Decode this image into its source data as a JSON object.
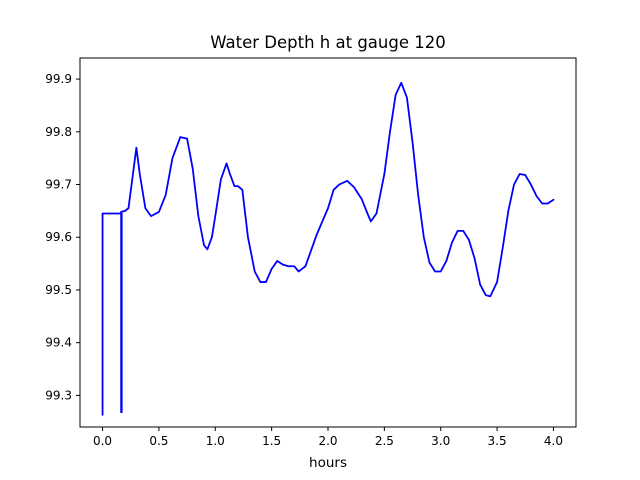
{
  "chart_data": {
    "type": "line",
    "title": "Water Depth h at gauge 120",
    "xlabel": "hours",
    "ylabel": "",
    "xlim": [
      -0.2,
      4.2
    ],
    "ylim": [
      99.24,
      99.94
    ],
    "xticks": [
      0.0,
      0.5,
      1.0,
      1.5,
      2.0,
      2.5,
      3.0,
      3.5,
      4.0
    ],
    "xtick_labels": [
      "0.0",
      "0.5",
      "1.0",
      "1.5",
      "2.0",
      "2.5",
      "3.0",
      "3.5",
      "4.0"
    ],
    "yticks": [
      99.3,
      99.4,
      99.5,
      99.6,
      99.7,
      99.8,
      99.9
    ],
    "ytick_labels": [
      "99.3",
      "99.4",
      "99.5",
      "99.6",
      "99.7",
      "99.8",
      "99.9"
    ],
    "grid": false,
    "series": [
      {
        "color": "#0000ff",
        "x": [
          0.0,
          0.0,
          0.17,
          0.17,
          0.165,
          0.165,
          0.2,
          0.23,
          0.27,
          0.3,
          0.33,
          0.38,
          0.43,
          0.5,
          0.56,
          0.62,
          0.69,
          0.75,
          0.8,
          0.85,
          0.9,
          0.93,
          0.97,
          1.0,
          1.05,
          1.1,
          1.13,
          1.17,
          1.2,
          1.24,
          1.29,
          1.35,
          1.4,
          1.45,
          1.5,
          1.55,
          1.6,
          1.65,
          1.7,
          1.74,
          1.8,
          1.85,
          1.9,
          1.95,
          2.0,
          2.05,
          2.1,
          2.17,
          2.23,
          2.3,
          2.35,
          2.38,
          2.43,
          2.5,
          2.55,
          2.6,
          2.65,
          2.7,
          2.75,
          2.8,
          2.85,
          2.9,
          2.95,
          3.0,
          3.05,
          3.1,
          3.15,
          3.2,
          3.25,
          3.3,
          3.35,
          3.4,
          3.44,
          3.5,
          3.55,
          3.6,
          3.65,
          3.7,
          3.75,
          3.8,
          3.85,
          3.9,
          3.95,
          4.0
        ],
        "y": [
          99.263,
          99.645,
          99.645,
          99.268,
          99.268,
          99.648,
          99.65,
          99.655,
          99.72,
          99.77,
          99.72,
          99.655,
          99.64,
          99.648,
          99.68,
          99.75,
          99.79,
          99.787,
          99.73,
          99.64,
          99.585,
          99.577,
          99.6,
          99.64,
          99.71,
          99.74,
          99.72,
          99.697,
          99.697,
          99.69,
          99.6,
          99.535,
          99.515,
          99.515,
          99.54,
          99.555,
          99.548,
          99.545,
          99.545,
          99.535,
          99.545,
          99.575,
          99.605,
          99.63,
          99.655,
          99.69,
          99.7,
          99.707,
          99.695,
          99.672,
          99.645,
          99.63,
          99.645,
          99.72,
          99.8,
          99.87,
          99.893,
          99.865,
          99.78,
          99.68,
          99.6,
          99.552,
          99.535,
          99.535,
          99.555,
          99.59,
          99.612,
          99.612,
          99.595,
          99.56,
          99.51,
          99.49,
          99.488,
          99.515,
          99.58,
          99.65,
          99.7,
          99.72,
          99.718,
          99.7,
          99.678,
          99.664,
          99.664,
          99.671
        ]
      }
    ]
  }
}
